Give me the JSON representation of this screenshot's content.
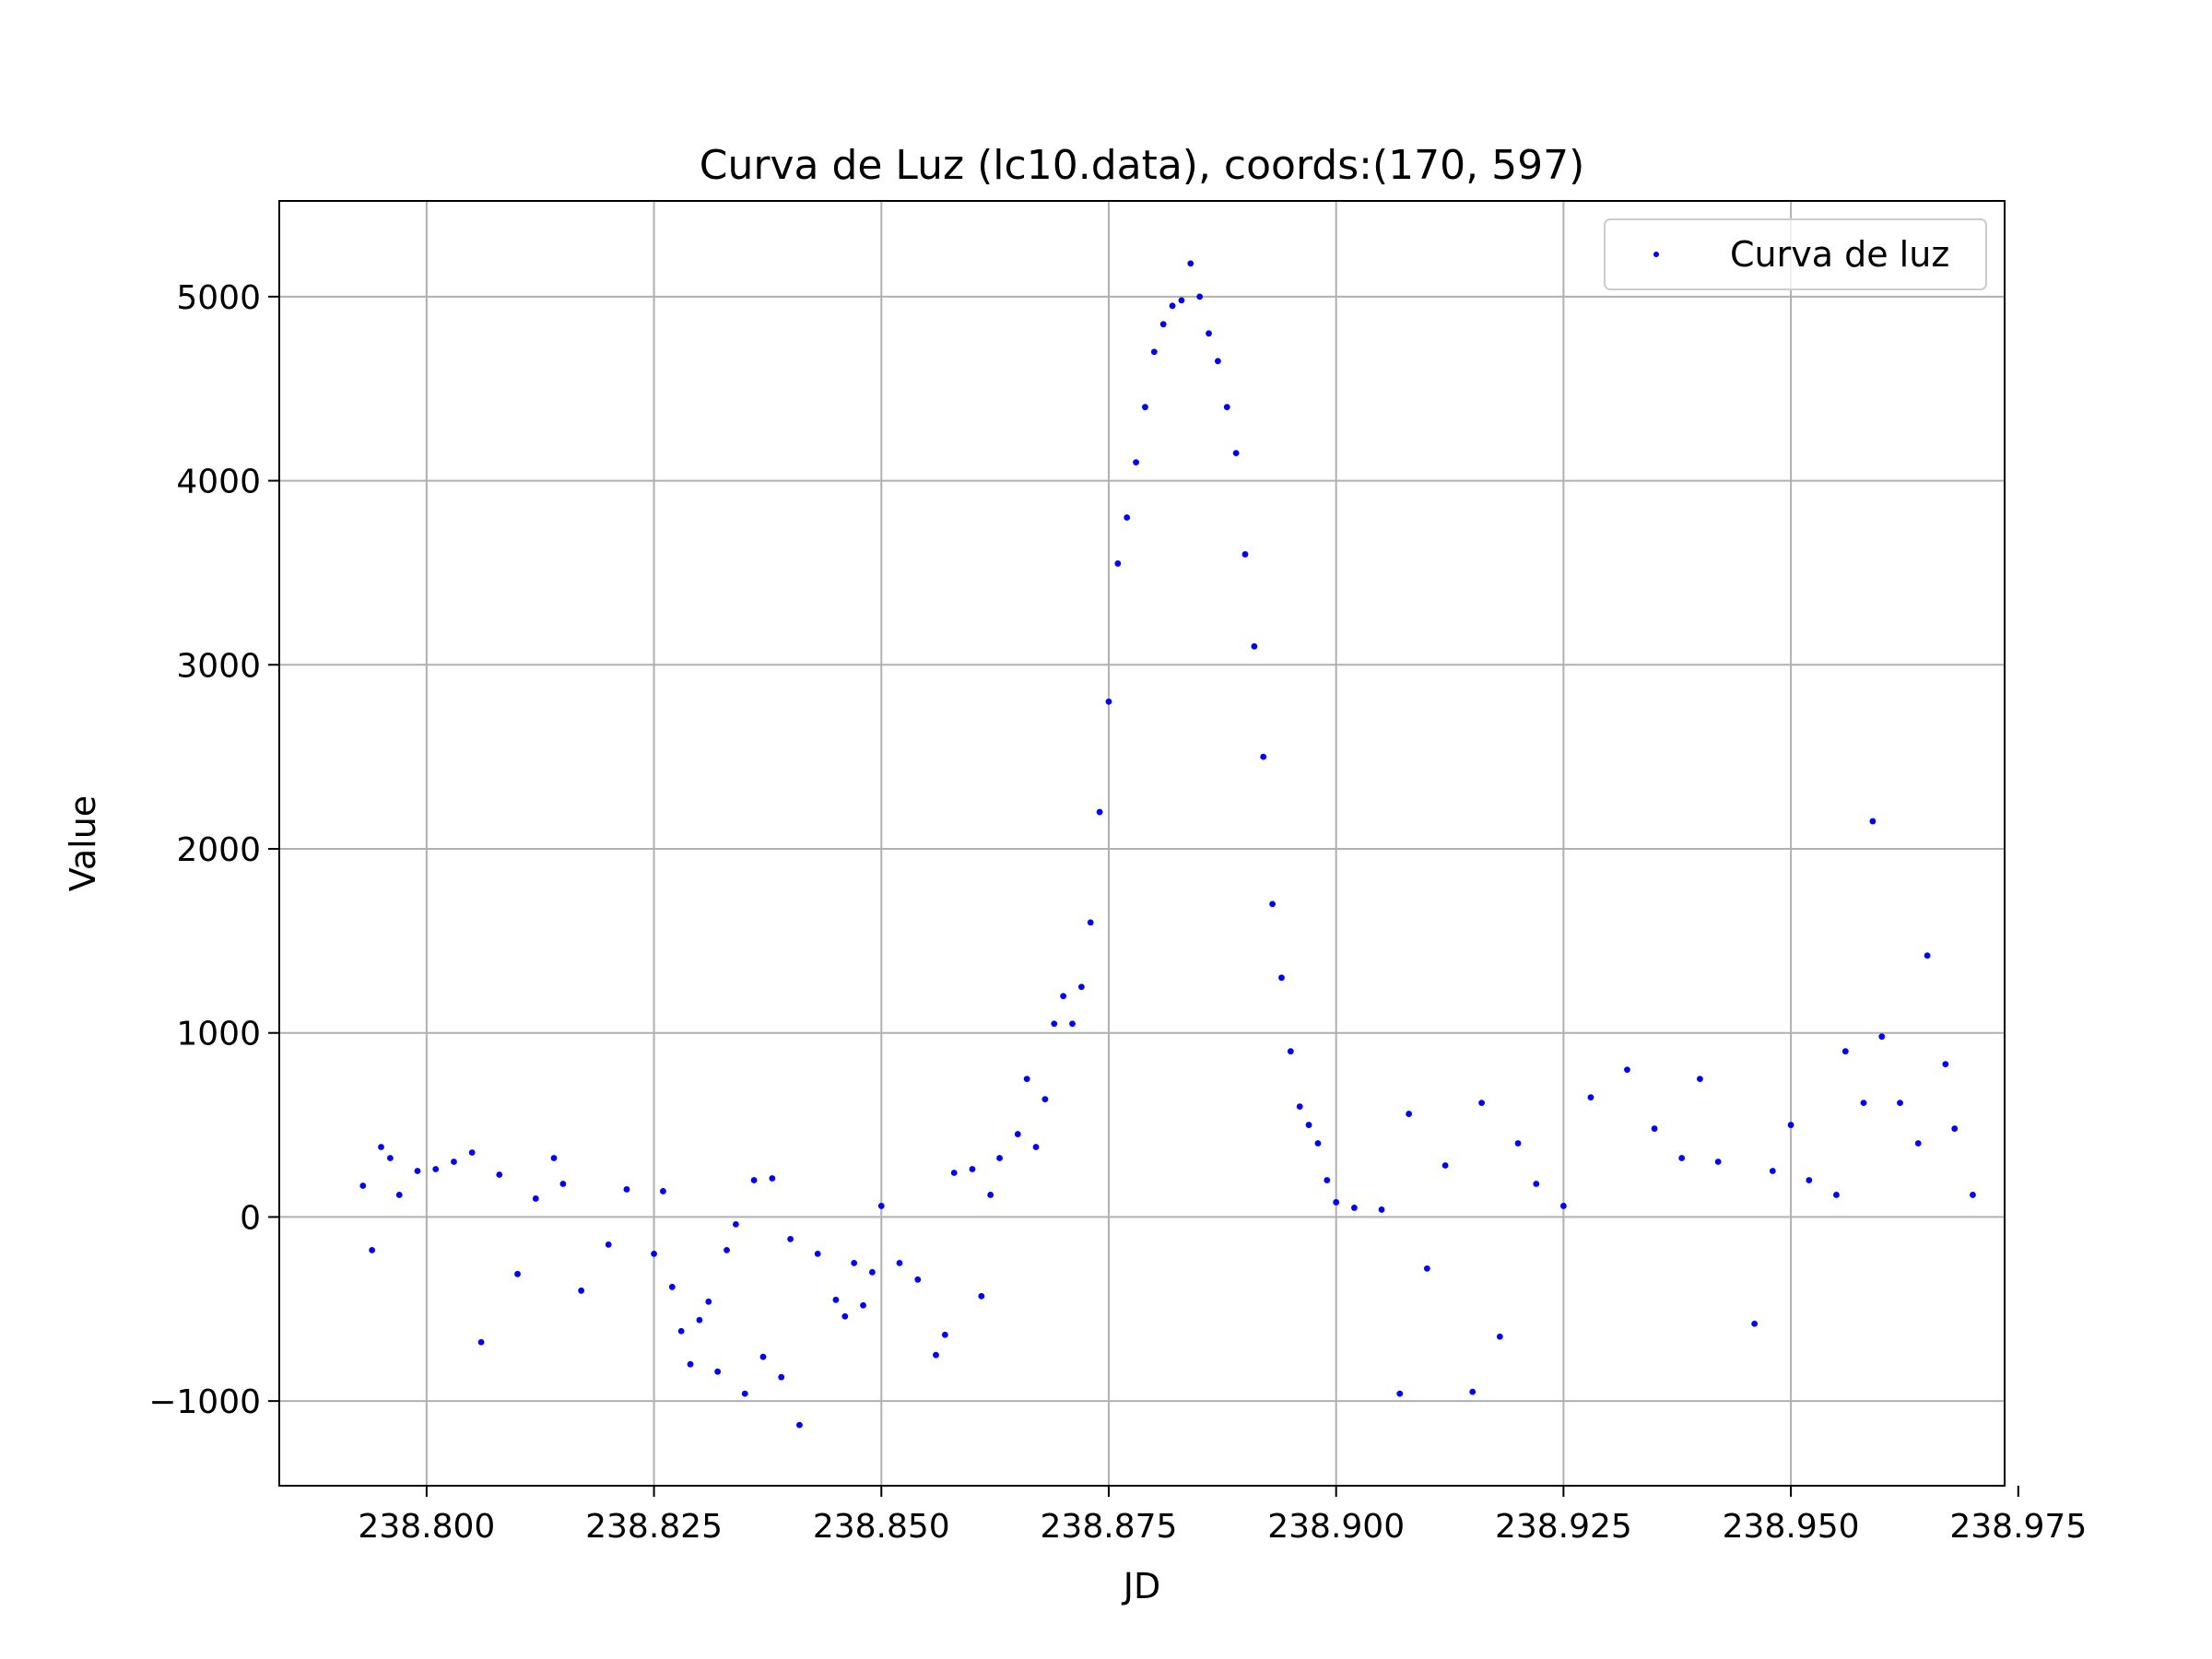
{
  "chart_data": {
    "type": "scatter",
    "title": "Curva de Luz (lc10.data), coords:(170, 597)",
    "xlabel": "JD",
    "ylabel": "Value",
    "xlim": [
      238.7838,
      238.9735
    ],
    "ylim": [
      -1460,
      5520
    ],
    "x_ticks": [
      238.8,
      238.825,
      238.85,
      238.875,
      238.9,
      238.925,
      238.95,
      238.975
    ],
    "x_tick_labels": [
      "238.800",
      "238.825",
      "238.850",
      "238.875",
      "238.900",
      "238.925",
      "238.950",
      "238.975"
    ],
    "y_ticks": [
      -1000,
      0,
      1000,
      2000,
      3000,
      4000,
      5000
    ],
    "y_tick_labels": [
      "−1000",
      "0",
      "1000",
      "2000",
      "3000",
      "4000",
      "5000"
    ],
    "grid": true,
    "legend": {
      "position": "top-right",
      "entries": [
        "Curva de luz"
      ]
    },
    "colors": {
      "series": "#0000ff",
      "grid": "#b0b0b0",
      "axes": "#000000"
    },
    "series": [
      {
        "name": "Curva de luz",
        "x_range": [
          238.793,
          238.97
        ],
        "points": [
          [
            238.793,
            170
          ],
          [
            238.794,
            -180
          ],
          [
            238.795,
            380
          ],
          [
            238.796,
            320
          ],
          [
            238.797,
            120
          ],
          [
            238.799,
            250
          ],
          [
            238.801,
            260
          ],
          [
            238.803,
            300
          ],
          [
            238.805,
            350
          ],
          [
            238.806,
            -680
          ],
          [
            238.808,
            230
          ],
          [
            238.81,
            -310
          ],
          [
            238.812,
            100
          ],
          [
            238.814,
            320
          ],
          [
            238.815,
            180
          ],
          [
            238.817,
            -400
          ],
          [
            238.82,
            -150
          ],
          [
            238.822,
            150
          ],
          [
            238.825,
            -200
          ],
          [
            238.826,
            140
          ],
          [
            238.827,
            -380
          ],
          [
            238.828,
            -620
          ],
          [
            238.829,
            -800
          ],
          [
            238.83,
            -560
          ],
          [
            238.831,
            -460
          ],
          [
            238.832,
            -840
          ],
          [
            238.833,
            -180
          ],
          [
            238.834,
            -40
          ],
          [
            238.835,
            -960
          ],
          [
            238.836,
            200
          ],
          [
            238.837,
            -760
          ],
          [
            238.838,
            210
          ],
          [
            238.839,
            -870
          ],
          [
            238.84,
            -120
          ],
          [
            238.841,
            -1130
          ],
          [
            238.843,
            -200
          ],
          [
            238.845,
            -450
          ],
          [
            238.846,
            -540
          ],
          [
            238.847,
            -250
          ],
          [
            238.848,
            -480
          ],
          [
            238.849,
            -300
          ],
          [
            238.85,
            60
          ],
          [
            238.852,
            -250
          ],
          [
            238.854,
            -340
          ],
          [
            238.856,
            -750
          ],
          [
            238.857,
            -640
          ],
          [
            238.858,
            240
          ],
          [
            238.86,
            260
          ],
          [
            238.861,
            -430
          ],
          [
            238.862,
            120
          ],
          [
            238.863,
            320
          ],
          [
            238.865,
            450
          ],
          [
            238.866,
            750
          ],
          [
            238.867,
            380
          ],
          [
            238.868,
            640
          ],
          [
            238.869,
            1050
          ],
          [
            238.87,
            1200
          ],
          [
            238.871,
            1050
          ],
          [
            238.872,
            1250
          ],
          [
            238.873,
            1600
          ],
          [
            238.874,
            2200
          ],
          [
            238.875,
            2800
          ],
          [
            238.876,
            3550
          ],
          [
            238.877,
            3800
          ],
          [
            238.878,
            4100
          ],
          [
            238.879,
            4400
          ],
          [
            238.88,
            4700
          ],
          [
            238.881,
            4850
          ],
          [
            238.882,
            4950
          ],
          [
            238.883,
            4980
          ],
          [
            238.884,
            5180
          ],
          [
            238.885,
            5000
          ],
          [
            238.886,
            4800
          ],
          [
            238.887,
            4650
          ],
          [
            238.888,
            4400
          ],
          [
            238.889,
            4150
          ],
          [
            238.89,
            3600
          ],
          [
            238.891,
            3100
          ],
          [
            238.892,
            2500
          ],
          [
            238.893,
            1700
          ],
          [
            238.894,
            1300
          ],
          [
            238.895,
            900
          ],
          [
            238.896,
            600
          ],
          [
            238.897,
            500
          ],
          [
            238.898,
            400
          ],
          [
            238.899,
            200
          ],
          [
            238.9,
            80
          ],
          [
            238.902,
            50
          ],
          [
            238.905,
            40
          ],
          [
            238.907,
            -960
          ],
          [
            238.908,
            560
          ],
          [
            238.91,
            -280
          ],
          [
            238.912,
            280
          ],
          [
            238.915,
            -950
          ],
          [
            238.916,
            620
          ],
          [
            238.918,
            -650
          ],
          [
            238.92,
            400
          ],
          [
            238.922,
            180
          ],
          [
            238.925,
            60
          ],
          [
            238.928,
            650
          ],
          [
            238.932,
            800
          ],
          [
            238.935,
            480
          ],
          [
            238.938,
            320
          ],
          [
            238.94,
            750
          ],
          [
            238.942,
            300
          ],
          [
            238.946,
            -580
          ],
          [
            238.948,
            250
          ],
          [
            238.95,
            500
          ],
          [
            238.952,
            200
          ],
          [
            238.955,
            120
          ],
          [
            238.956,
            900
          ],
          [
            238.958,
            620
          ],
          [
            238.959,
            2150
          ],
          [
            238.96,
            980
          ],
          [
            238.962,
            620
          ],
          [
            238.964,
            400
          ],
          [
            238.965,
            1420
          ],
          [
            238.967,
            830
          ],
          [
            238.968,
            480
          ],
          [
            238.97,
            120
          ]
        ]
      }
    ]
  }
}
